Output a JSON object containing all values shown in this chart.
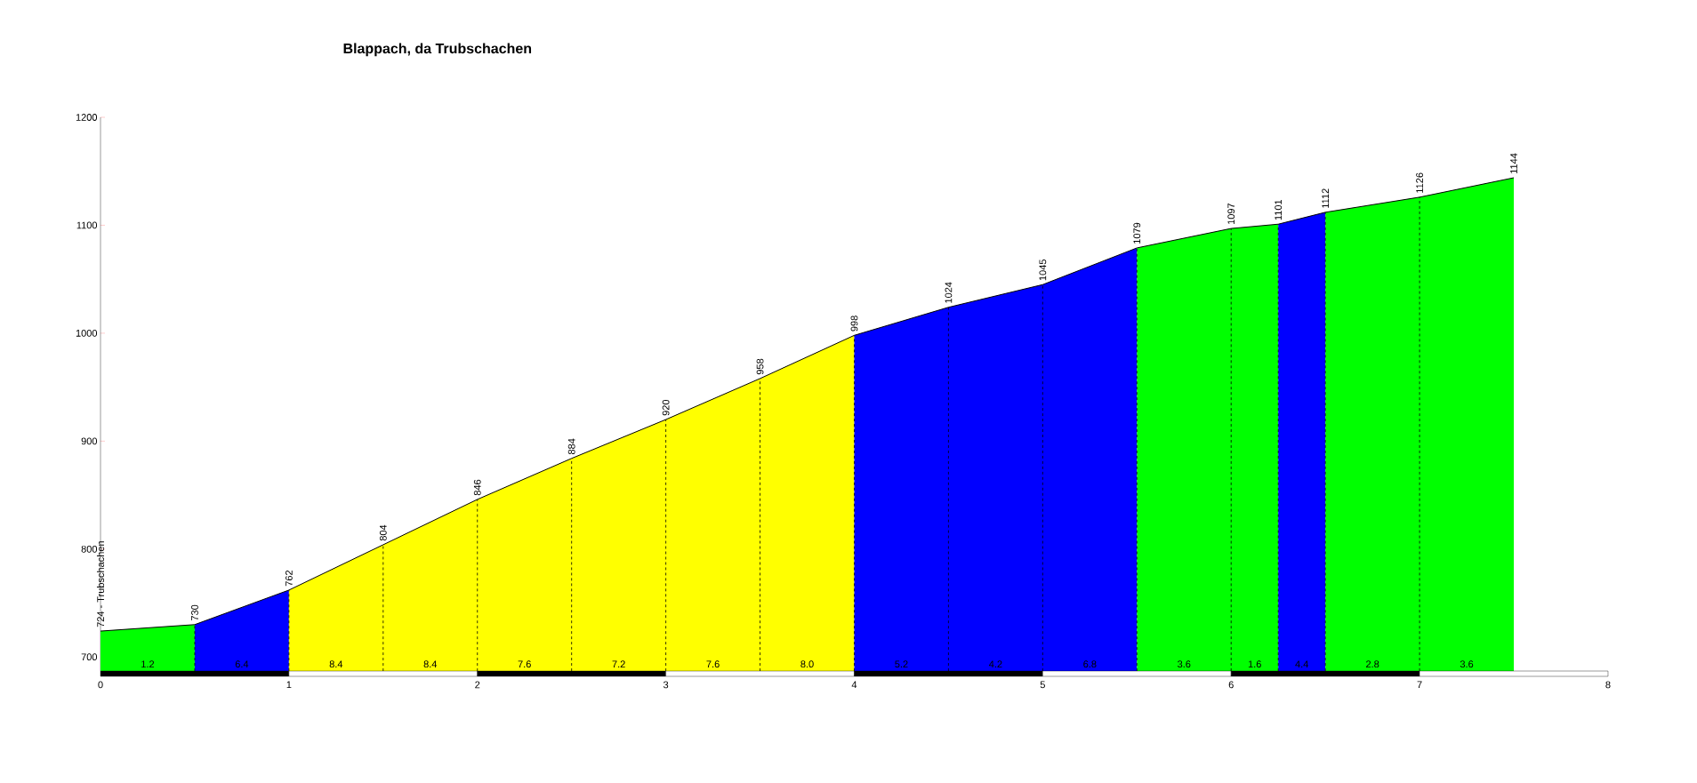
{
  "chart_data": {
    "type": "area",
    "title": "Blappach, da Trubschachen",
    "xlim": [
      0,
      8
    ],
    "xticks": [
      0,
      1,
      2,
      3,
      4,
      5,
      6,
      7,
      8
    ],
    "ylim": [
      687,
      1200
    ],
    "yticks": [
      700,
      800,
      900,
      1000,
      1100,
      1200
    ],
    "series": [
      {
        "color": "#00ff00",
        "x": [
          0,
          0.5
        ],
        "values": [
          724,
          730
        ],
        "value_labels": [
          "724 - Trubschachen",
          "730"
        ]
      },
      {
        "color": "#0000ff",
        "x": [
          0.5,
          1
        ],
        "values": [
          730,
          762
        ],
        "value_labels": [
          null,
          "762"
        ]
      },
      {
        "color": "#ffff00",
        "x": [
          1,
          1.5,
          2,
          2.5,
          3,
          3.5,
          4
        ],
        "values": [
          762,
          804,
          846,
          884,
          920,
          958,
          998
        ],
        "value_labels": [
          null,
          "804",
          "846",
          "884",
          "920",
          "958",
          "998"
        ]
      },
      {
        "color": "#0000ff",
        "x": [
          4,
          4.5,
          5,
          5.5
        ],
        "values": [
          998,
          1024,
          1045,
          1079
        ],
        "value_labels": [
          null,
          "1024",
          "1045",
          "1079"
        ]
      },
      {
        "color": "#00ff00",
        "x": [
          5.5,
          6,
          6.25
        ],
        "values": [
          1079,
          1097,
          1101
        ],
        "value_labels": [
          null,
          "1097",
          "1101"
        ]
      },
      {
        "color": "#0000ff",
        "x": [
          6.25,
          6.5
        ],
        "values": [
          1101,
          1112
        ],
        "value_labels": [
          null,
          "1112"
        ]
      },
      {
        "color": "#00ff00",
        "x": [
          6.5,
          7,
          7.5
        ],
        "values": [
          1112,
          1126,
          1144
        ],
        "value_labels": [
          null,
          "1126",
          "1144"
        ]
      }
    ],
    "annotations": [
      "1.2",
      "6.4",
      "8.4",
      "8.4",
      "7.6",
      "7.2",
      "7.6",
      "8.0",
      "5.2",
      "4.2",
      "6.8",
      "3.6",
      "1.6",
      "4.4",
      "2.8",
      "3.6"
    ]
  }
}
